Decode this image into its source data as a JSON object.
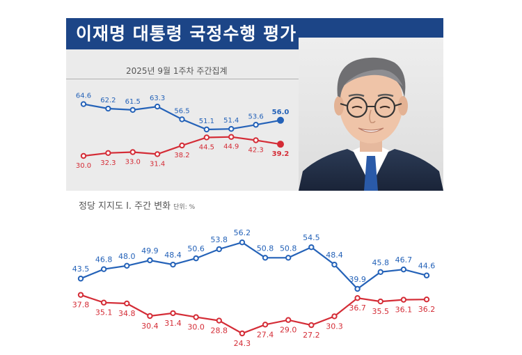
{
  "header": {
    "title": "이재명 대통령 국정수행 평가",
    "subtitle": "2025년 9월 1주차 주간집계"
  },
  "section2": {
    "title": "정당 지지도 Ⅰ. 주간 변화",
    "unit": "단위: %"
  },
  "colors": {
    "blue": "#2462b8",
    "red": "#d42c36",
    "title_bar": "#1c4587"
  },
  "chart_data": [
    {
      "type": "line",
      "title": "이재명 대통령 국정수행 평가",
      "subtitle": "2025년 9월 1주차 주간집계",
      "x": [
        1,
        2,
        3,
        4,
        5,
        6,
        7,
        8,
        9
      ],
      "series": [
        {
          "color": "#2462b8",
          "values": [
            64.6,
            62.2,
            61.5,
            63.3,
            56.5,
            51.1,
            51.4,
            53.6,
            56.0
          ]
        },
        {
          "color": "#d42c36",
          "values": [
            30.0,
            32.3,
            33.0,
            31.4,
            38.2,
            44.5,
            44.9,
            42.3,
            39.2
          ]
        }
      ]
    },
    {
      "type": "line",
      "title": "정당 지지도 Ⅰ. 주간 변화",
      "unit": "단위: %",
      "x": [
        1,
        2,
        3,
        4,
        5,
        6,
        7,
        8,
        9,
        10,
        11,
        12,
        13,
        14,
        15,
        16
      ],
      "series": [
        {
          "color": "#2462b8",
          "values": [
            43.5,
            46.8,
            48.0,
            49.9,
            48.4,
            50.6,
            53.8,
            56.2,
            50.8,
            50.8,
            54.5,
            48.4,
            39.9,
            45.8,
            46.7,
            44.6
          ]
        },
        {
          "color": "#d42c36",
          "values": [
            37.8,
            35.1,
            34.8,
            30.4,
            31.4,
            30.0,
            28.8,
            24.3,
            27.4,
            29.0,
            27.2,
            30.3,
            36.7,
            35.5,
            36.1,
            36.2
          ]
        }
      ]
    }
  ]
}
